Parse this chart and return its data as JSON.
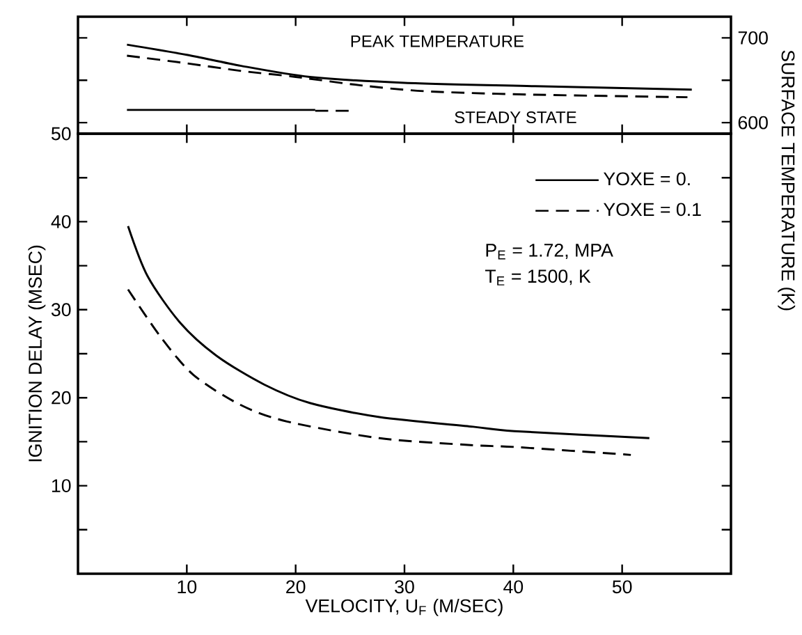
{
  "chart_data": [
    {
      "type": "line",
      "xlim": [
        0,
        60
      ],
      "xticks": [
        10,
        20,
        30,
        40,
        50
      ],
      "y2lim": [
        587,
        725
      ],
      "y2ticks": [
        600,
        {
          "value": 650,
          "label": null
        },
        700
      ],
      "y2label": "SURFACE TEMPERATURE (K)",
      "tick_labels": "y",
      "marker": "none",
      "annotations": [
        "PEAK TEMPERATURE",
        "STEADY STATE"
      ],
      "series": [
        {
          "axis": "y2",
          "color": "#000000",
          "line_style": "solid",
          "x": [
            4.5,
            10,
            15,
            21.3,
            30,
            42,
            56.4
          ],
          "values": [
            692,
            680,
            667,
            654,
            647,
            643,
            639
          ]
        },
        {
          "axis": "y2",
          "color": "#000000",
          "line_style": "dashed",
          "x": [
            4.5,
            10,
            15,
            20,
            26,
            32,
            42,
            56
          ],
          "values": [
            679,
            670,
            661,
            654,
            644,
            637,
            633,
            630
          ]
        },
        {
          "axis": "y2",
          "color": "#000000",
          "line_style": "solid",
          "x": [
            4.5,
            21.8
          ],
          "values": [
            615,
            615
          ]
        },
        {
          "axis": "y2",
          "color": "#000000",
          "line_style": "dashed",
          "x": [
            21.8,
            25
          ],
          "values": [
            614,
            614
          ]
        }
      ]
    },
    {
      "type": "line",
      "xlabel": "VELOCITY, U$_{F}$ (M/SEC)",
      "ylabel": "IGNITION DELAY (MSEC)",
      "xlim": [
        0,
        60
      ],
      "xticks": [
        10,
        20,
        30,
        40,
        50
      ],
      "ylim": [
        0,
        50
      ],
      "yticks": [
        {
          "value": 5,
          "label": null
        },
        10,
        {
          "value": 15,
          "label": null
        },
        20,
        {
          "value": 25,
          "label": null
        },
        30,
        {
          "value": 35,
          "label": null
        },
        40,
        {
          "value": 45,
          "label": null
        },
        50
      ],
      "legend": "top right",
      "marker": "none",
      "annotations": [
        "P$_{E}$ = 1.72, MPA",
        "T$_{E}$ = 1500, K"
      ],
      "series": [
        {
          "name": "YOXE = 0.",
          "color": "#000000",
          "line_style": "solid",
          "x": [
            4.6,
            6.4,
            9.4,
            12.8,
            17.1,
            21.3,
            27.7,
            36.3,
            40.1,
            52.5
          ],
          "values": [
            39.5,
            33.8,
            28.5,
            24.7,
            21.5,
            19.4,
            17.8,
            16.7,
            16.2,
            15.4
          ]
        },
        {
          "name": "YOXE = 0.1",
          "color": "#000000",
          "line_style": "dashed",
          "x": [
            4.6,
            7.6,
            10.6,
            14.9,
            19.2,
            27.7,
            36.3,
            40.1,
            50.8
          ],
          "values": [
            32.3,
            26.9,
            22.6,
            19.2,
            17.3,
            15.4,
            14.6,
            14.4,
            13.5
          ]
        }
      ]
    }
  ]
}
